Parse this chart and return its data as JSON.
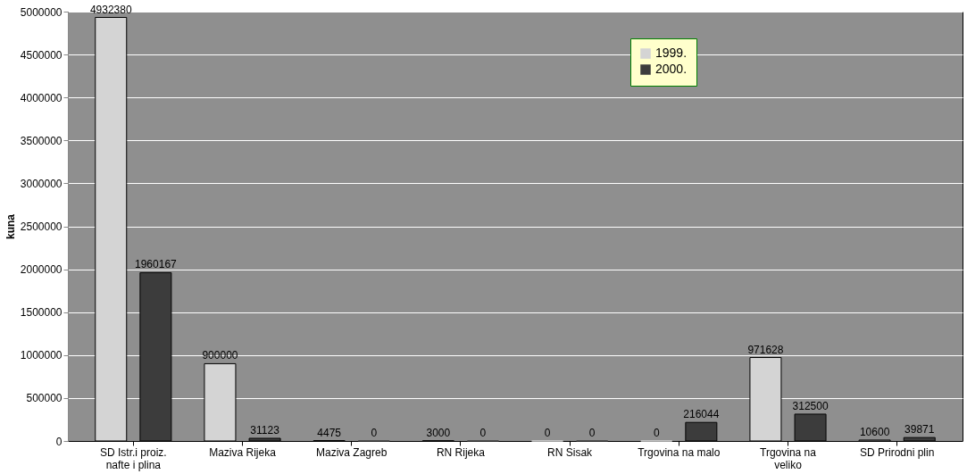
{
  "chart_data": {
    "type": "bar",
    "ylabel": "kuna",
    "categories": [
      "SD Istr.i proiz. nafte i plina",
      "Maziva Rijeka",
      "Maziva Zagreb",
      "RN Rijeka",
      "RN Sisak",
      "Trgovina na malo",
      "Trgovina na veliko",
      "SD Prirodni plin"
    ],
    "series": [
      {
        "name": "1999.",
        "color": "#d4d4d4",
        "values": [
          4932380,
          900000,
          4475,
          3000,
          0,
          0,
          971628,
          10600
        ]
      },
      {
        "name": "2000.",
        "color": "#3c3c3c",
        "values": [
          1960167,
          31123,
          0,
          0,
          0,
          216044,
          312500,
          39871
        ]
      }
    ],
    "ylim": [
      0,
      5000000
    ],
    "yticks": [
      0,
      500000,
      1000000,
      1500000,
      2000000,
      2500000,
      3000000,
      3500000,
      4000000,
      4500000,
      5000000
    ],
    "grid": "y",
    "legend": "top",
    "data_labels": true
  }
}
